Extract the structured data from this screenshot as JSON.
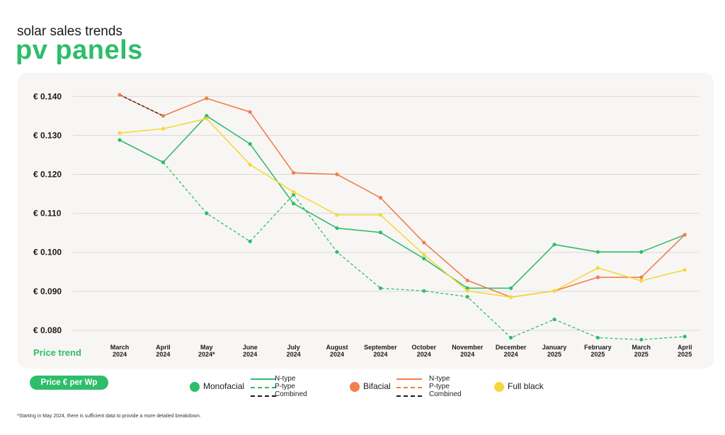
{
  "header": {
    "subtitle": "solar sales trends",
    "title": "pv panels"
  },
  "badge": {
    "label": "Price € per Wp"
  },
  "legend": {
    "monofacial": {
      "label": "Monofacial",
      "color": "#2ebd6b",
      "lines": [
        "N-type",
        "P-type",
        "Combined"
      ]
    },
    "bifacial": {
      "label": "Bifacial",
      "color": "#f07f4a",
      "lines": [
        "N-type",
        "P-type",
        "Combined"
      ]
    },
    "fullblack": {
      "label": "Full black",
      "color": "#f5d93a"
    }
  },
  "footnote": "*Starting in May 2024, there is sufficient data to provide a more detailed breakdown.",
  "chart_data": {
    "type": "line",
    "xlabel": "Price trend",
    "categories": [
      [
        "March",
        "2024"
      ],
      [
        "April",
        "2024"
      ],
      [
        "May",
        "2024*"
      ],
      [
        "June",
        "2024"
      ],
      [
        "July",
        "2024"
      ],
      [
        "August",
        "2024"
      ],
      [
        "September",
        "2024"
      ],
      [
        "October",
        "2024"
      ],
      [
        "November",
        "2024"
      ],
      [
        "December",
        "2024"
      ],
      [
        "January",
        "2025"
      ],
      [
        "February",
        "2025"
      ],
      [
        "March",
        "2025"
      ],
      [
        "April",
        "2025"
      ]
    ],
    "ylim": [
      0.078,
      0.1415
    ],
    "yticks": [
      0.08,
      0.09,
      0.1,
      0.11,
      0.12,
      0.13,
      0.14
    ],
    "ytick_labels": [
      "€ 0.080",
      "€ 0.090",
      "€ 0.100",
      "€ 0.110",
      "€ 0.120",
      "€ 0.130",
      "€ 0.140"
    ],
    "grid": true,
    "series": [
      {
        "name": "Monofacial N-type",
        "color": "#2ebd6b",
        "dash": "solid",
        "values": [
          null,
          null,
          0.135,
          0.1278,
          0.1125,
          0.1062,
          0.1051,
          0.0984,
          0.0908,
          0.0908,
          0.102,
          0.1001,
          0.1001,
          0.1045
        ]
      },
      {
        "name": "Monofacial P-type",
        "color": "#2ebd6b",
        "dash": "dashed",
        "values": [
          null,
          0.1231,
          0.11,
          0.1028,
          0.1148,
          0.1001,
          0.0908,
          0.0901,
          0.0886,
          0.0781,
          0.0828,
          0.0781,
          0.0776,
          0.0784
        ]
      },
      {
        "name": "Monofacial Combined",
        "color": "#1a1a1a",
        "dash": "dashed",
        "values": [
          0.1288,
          0.1231,
          null,
          null,
          null,
          null,
          null,
          null,
          null,
          null,
          null,
          null,
          null,
          null
        ]
      },
      {
        "name": "Monofacial",
        "color": "#2ebd6b",
        "dash": "solid",
        "values": [
          0.1288,
          0.1231,
          0.135,
          null,
          null,
          null,
          null,
          null,
          null,
          null,
          null,
          null,
          null,
          null
        ]
      },
      {
        "name": "Bifacial N-type",
        "color": "#f07f4a",
        "dash": "solid",
        "values": [
          0.1404,
          0.135,
          0.1395,
          0.136,
          0.1204,
          0.12,
          0.114,
          0.1025,
          0.0928,
          0.0885,
          0.0901,
          0.0936,
          0.0936,
          0.1045
        ]
      },
      {
        "name": "Bifacial Combined",
        "color": "#1a1a1a",
        "dash": "dashed",
        "values": [
          0.1404,
          0.135,
          null,
          null,
          null,
          null,
          null,
          null,
          null,
          null,
          null,
          null,
          null,
          null
        ]
      },
      {
        "name": "Full black",
        "color": "#f5d93a",
        "dash": "solid",
        "values": [
          0.1306,
          0.1317,
          0.1343,
          0.1225,
          0.1155,
          0.1096,
          0.1096,
          0.0994,
          0.0901,
          0.0885,
          0.0901,
          0.096,
          0.0927,
          0.0955
        ]
      }
    ]
  }
}
